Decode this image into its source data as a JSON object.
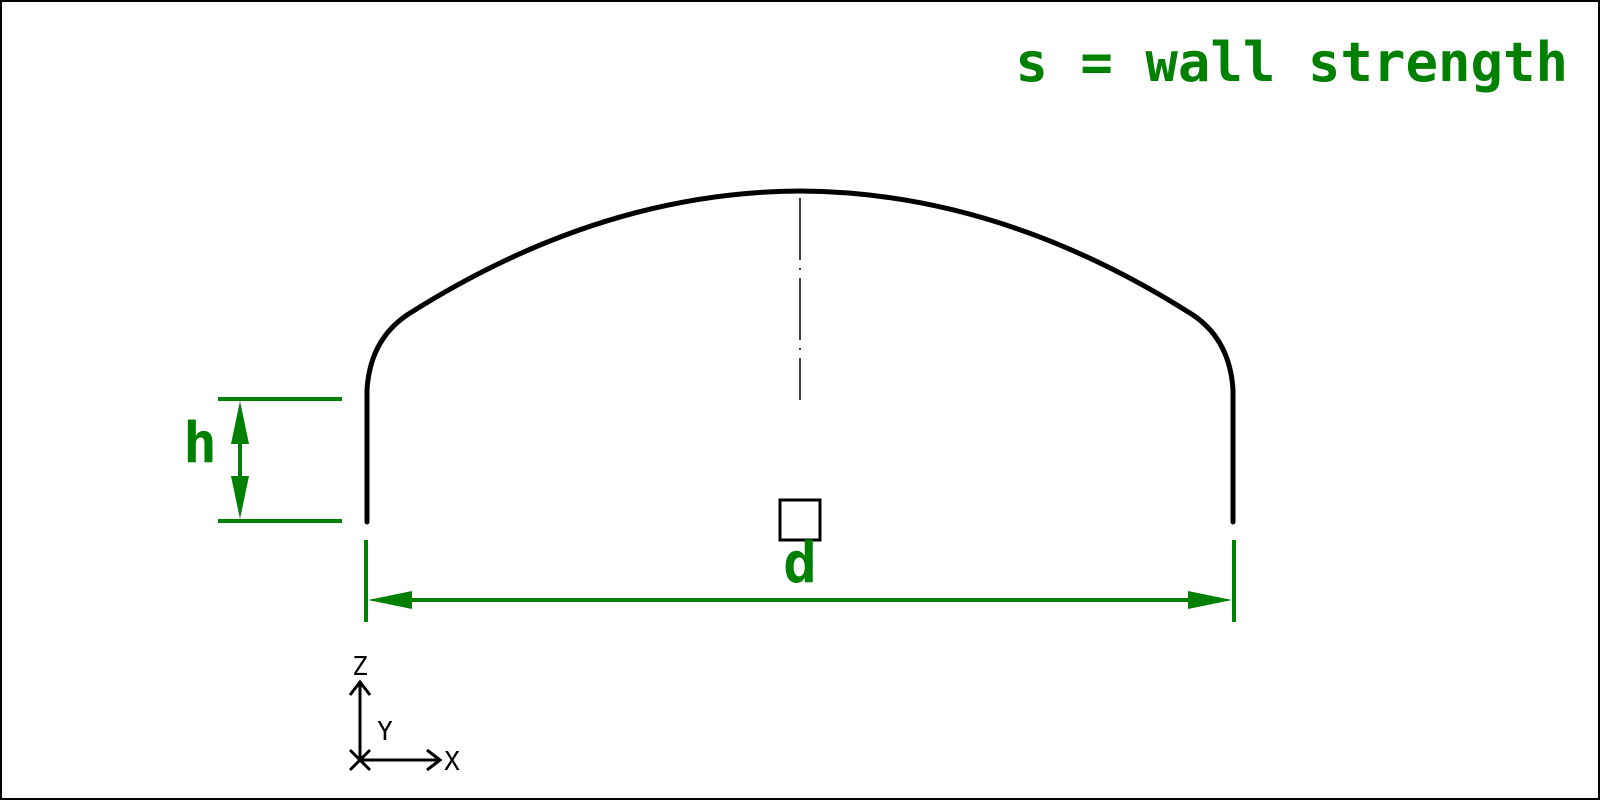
{
  "legend": {
    "text": "s = wall strength"
  },
  "dimensions": {
    "height_label": "h",
    "diameter_label": "d"
  },
  "axes": {
    "z_label": "Z",
    "y_label": "Y",
    "x_label": "X"
  },
  "colors": {
    "dimension": "#008000",
    "outline": "#000000",
    "frame": "#000000",
    "background": "#ffffff"
  }
}
